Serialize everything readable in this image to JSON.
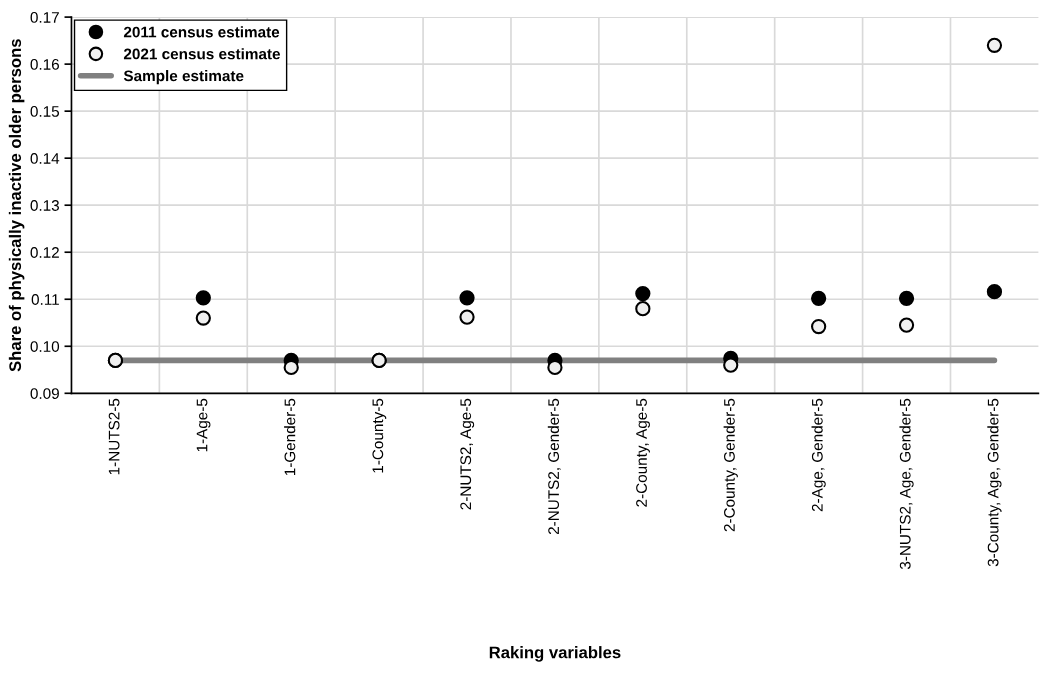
{
  "chart_data": {
    "type": "scatter",
    "xlabel": "Raking variables",
    "ylabel": "Share of physically inactive older persons",
    "categories": [
      "1-NUTS2-5",
      "1-Age-5",
      "1-Gender-5",
      "1-County-5",
      "2-NUTS2, Age-5",
      "2-NUTS2, Gender-5",
      "2-County, Age-5",
      "2-County, Gender-5",
      "2-Age, Gender-5",
      "3-NUTS2, Age, Gender-5",
      "3-County, Age, Gender-5"
    ],
    "series": [
      {
        "name": "2011 census estimate",
        "color": "#000000",
        "marker": "circle",
        "values": [
          0.097,
          0.1103,
          0.097,
          0.097,
          0.1103,
          0.097,
          0.1112,
          0.0974,
          0.1102,
          0.1102,
          0.1116
        ]
      },
      {
        "name": "2021 census estimate",
        "color": "#f0f0f0",
        "marker": "circle",
        "values": [
          0.097,
          0.106,
          0.0955,
          0.097,
          0.1062,
          0.0955,
          0.108,
          0.096,
          0.1042,
          0.1045,
          0.164
        ]
      },
      {
        "name": "Sample estimate",
        "type": "line",
        "color": "#808080",
        "marker": "none",
        "values": [
          0.097,
          0.097,
          0.097,
          0.097,
          0.097,
          0.097,
          0.097,
          0.097,
          0.097,
          0.097,
          0.097
        ]
      }
    ],
    "ylim": [
      0.09,
      0.17
    ],
    "yticks": [
      {
        "value": 0.09,
        "label": "0.09"
      },
      {
        "value": 0.1,
        "label": "0.10"
      },
      {
        "value": 0.11,
        "label": "0.11"
      },
      {
        "value": 0.12,
        "label": "0.12"
      },
      {
        "value": 0.13,
        "label": "0.13"
      },
      {
        "value": 0.14,
        "label": "0.14"
      },
      {
        "value": 0.15,
        "label": "0.15"
      },
      {
        "value": 0.16,
        "label": "0.16"
      },
      {
        "value": 0.17,
        "label": "0.17"
      }
    ],
    "grid": true,
    "legend": "top left"
  }
}
